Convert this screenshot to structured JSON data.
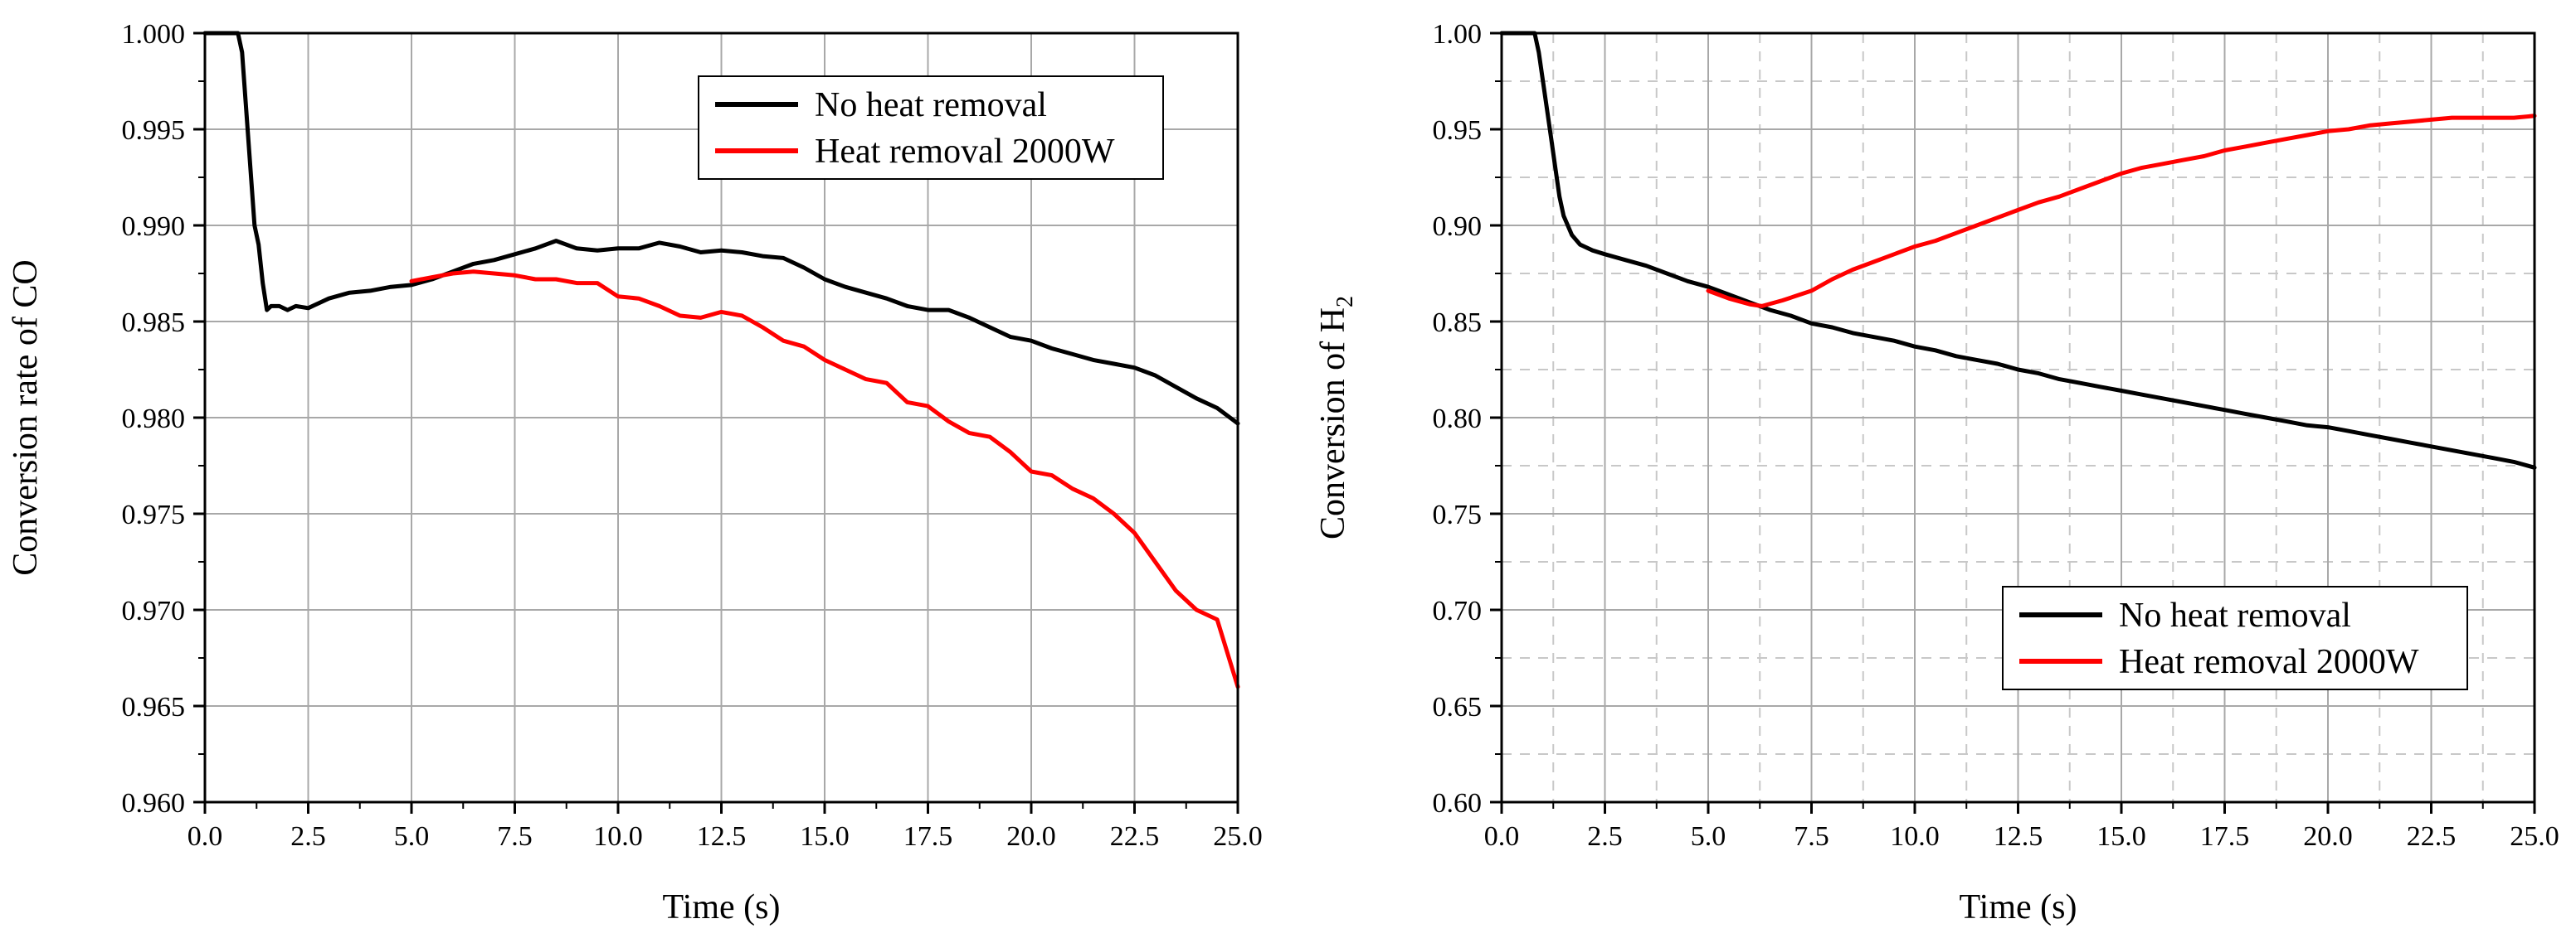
{
  "chart_data": [
    {
      "type": "line",
      "xlabel": "Time (s)",
      "ylabel": "Conversion rate of CO",
      "ylabel_sub": "",
      "xlim": [
        0,
        25
      ],
      "ylim": [
        0.96,
        1.0
      ],
      "xticks": [
        0,
        2.5,
        5,
        7.5,
        10,
        12.5,
        15,
        17.5,
        20,
        22.5,
        25
      ],
      "xtick_labels": [
        "0.0",
        "2.5",
        "5.0",
        "7.5",
        "10.0",
        "12.5",
        "15.0",
        "17.5",
        "20.0",
        "22.5",
        "25.0"
      ],
      "yticks": [
        0.96,
        0.965,
        0.97,
        0.975,
        0.98,
        0.985,
        0.99,
        0.995,
        1.0
      ],
      "ytick_labels": [
        "0.960",
        "0.965",
        "0.970",
        "0.975",
        "0.980",
        "0.985",
        "0.990",
        "0.995",
        "1.000"
      ],
      "grid": "solid",
      "legend_position": "top-right",
      "series": [
        {
          "name": "No heat removal",
          "color": "#000000",
          "x": [
            0,
            0.8,
            0.9,
            1.0,
            1.1,
            1.2,
            1.3,
            1.4,
            1.5,
            1.6,
            1.8,
            2.0,
            2.2,
            2.5,
            3.0,
            3.5,
            4.0,
            4.5,
            5.0,
            5.5,
            6.0,
            6.5,
            7.0,
            7.5,
            8.0,
            8.5,
            9.0,
            9.5,
            10.0,
            10.5,
            11.0,
            11.5,
            12.0,
            12.5,
            13.0,
            13.5,
            14.0,
            14.5,
            15.0,
            15.5,
            16.0,
            16.5,
            17.0,
            17.5,
            18.0,
            18.5,
            19.0,
            19.5,
            20.0,
            20.5,
            21.0,
            21.5,
            22.0,
            22.5,
            23.0,
            23.5,
            24.0,
            24.5,
            25.0
          ],
          "values": [
            1.0,
            1.0,
            0.999,
            0.996,
            0.993,
            0.99,
            0.989,
            0.987,
            0.9856,
            0.9858,
            0.9858,
            0.9856,
            0.9858,
            0.9857,
            0.9862,
            0.9865,
            0.9866,
            0.9868,
            0.9869,
            0.9872,
            0.9876,
            0.988,
            0.9882,
            0.9885,
            0.9888,
            0.9892,
            0.9888,
            0.9887,
            0.9888,
            0.9888,
            0.9891,
            0.9889,
            0.9886,
            0.9887,
            0.9886,
            0.9884,
            0.9883,
            0.9878,
            0.9872,
            0.9868,
            0.9865,
            0.9862,
            0.9858,
            0.9856,
            0.9856,
            0.9852,
            0.9847,
            0.9842,
            0.984,
            0.9836,
            0.9833,
            0.983,
            0.9828,
            0.9826,
            0.9822,
            0.9816,
            0.981,
            0.9805,
            0.9797
          ]
        },
        {
          "name": "Heat removal 2000W",
          "color": "#ff0000",
          "x": [
            5.0,
            5.5,
            6.0,
            6.5,
            7.0,
            7.5,
            8.0,
            8.5,
            9.0,
            9.5,
            10.0,
            10.5,
            11.0,
            11.5,
            12.0,
            12.5,
            13.0,
            13.5,
            14.0,
            14.5,
            15.0,
            15.5,
            16.0,
            16.5,
            17.0,
            17.5,
            18.0,
            18.5,
            19.0,
            19.5,
            20.0,
            20.5,
            21.0,
            21.5,
            22.0,
            22.5,
            23.0,
            23.5,
            24.0,
            24.5,
            25.0
          ],
          "values": [
            0.9871,
            0.9873,
            0.9875,
            0.9876,
            0.9875,
            0.9874,
            0.9872,
            0.9872,
            0.987,
            0.987,
            0.9863,
            0.9862,
            0.9858,
            0.9853,
            0.9852,
            0.9855,
            0.9853,
            0.9847,
            0.984,
            0.9837,
            0.983,
            0.9825,
            0.982,
            0.9818,
            0.9808,
            0.9806,
            0.9798,
            0.9792,
            0.979,
            0.9782,
            0.9772,
            0.977,
            0.9763,
            0.9758,
            0.975,
            0.974,
            0.9725,
            0.971,
            0.97,
            0.9695,
            0.966
          ]
        }
      ]
    },
    {
      "type": "line",
      "xlabel": "Time (s)",
      "ylabel": "Conversion of H",
      "ylabel_sub": "2",
      "xlim": [
        0,
        25
      ],
      "ylim": [
        0.6,
        1.0
      ],
      "xticks": [
        0,
        2.5,
        5,
        7.5,
        10,
        12.5,
        15,
        17.5,
        20,
        22.5,
        25
      ],
      "xtick_labels": [
        "0.0",
        "2.5",
        "5.0",
        "7.5",
        "10.0",
        "12.5",
        "15.0",
        "17.5",
        "20.0",
        "22.5",
        "25.0"
      ],
      "yticks": [
        0.6,
        0.65,
        0.7,
        0.75,
        0.8,
        0.85,
        0.9,
        0.95,
        1.0
      ],
      "ytick_labels": [
        "0.60",
        "0.65",
        "0.70",
        "0.75",
        "0.80",
        "0.85",
        "0.90",
        "0.95",
        "1.00"
      ],
      "grid": "solid-and-dashed-minor",
      "legend_position": "bottom-right",
      "series": [
        {
          "name": "No heat removal",
          "color": "#000000",
          "x": [
            0,
            0.8,
            0.9,
            1.0,
            1.1,
            1.2,
            1.3,
            1.4,
            1.5,
            1.7,
            1.9,
            2.2,
            2.5,
            3.0,
            3.5,
            4.0,
            4.5,
            5.0,
            5.5,
            6.0,
            6.5,
            7.0,
            7.5,
            8.0,
            8.5,
            9.0,
            9.5,
            10.0,
            10.5,
            11.0,
            11.5,
            12.0,
            12.5,
            13.0,
            13.5,
            14.0,
            14.5,
            15.0,
            15.5,
            16.0,
            16.5,
            17.0,
            17.5,
            18.0,
            18.5,
            19.0,
            19.5,
            20.0,
            20.5,
            21.0,
            21.5,
            22.0,
            22.5,
            23.0,
            23.5,
            24.0,
            24.5,
            25.0
          ],
          "values": [
            1.0,
            1.0,
            0.99,
            0.975,
            0.96,
            0.945,
            0.93,
            0.915,
            0.905,
            0.895,
            0.89,
            0.887,
            0.885,
            0.882,
            0.879,
            0.875,
            0.871,
            0.868,
            0.864,
            0.86,
            0.856,
            0.853,
            0.849,
            0.847,
            0.844,
            0.842,
            0.84,
            0.837,
            0.835,
            0.832,
            0.83,
            0.828,
            0.825,
            0.823,
            0.82,
            0.818,
            0.816,
            0.814,
            0.812,
            0.81,
            0.808,
            0.806,
            0.804,
            0.802,
            0.8,
            0.798,
            0.796,
            0.795,
            0.793,
            0.791,
            0.789,
            0.787,
            0.785,
            0.783,
            0.781,
            0.779,
            0.777,
            0.774
          ]
        },
        {
          "name": "Heat removal 2000W",
          "color": "#ff0000",
          "x": [
            5.0,
            5.5,
            6.0,
            6.3,
            6.8,
            7.5,
            8.0,
            8.5,
            9.0,
            9.5,
            10.0,
            10.5,
            11.0,
            11.5,
            12.0,
            12.5,
            13.0,
            13.5,
            14.0,
            14.5,
            15.0,
            15.5,
            16.0,
            16.5,
            17.0,
            17.5,
            18.0,
            18.5,
            19.0,
            19.5,
            20.0,
            20.5,
            21.0,
            21.5,
            22.0,
            22.5,
            23.0,
            23.5,
            24.0,
            24.5,
            25.0
          ],
          "values": [
            0.866,
            0.862,
            0.859,
            0.858,
            0.861,
            0.866,
            0.872,
            0.877,
            0.881,
            0.885,
            0.889,
            0.892,
            0.896,
            0.9,
            0.904,
            0.908,
            0.912,
            0.915,
            0.919,
            0.923,
            0.927,
            0.93,
            0.932,
            0.934,
            0.936,
            0.939,
            0.941,
            0.943,
            0.945,
            0.947,
            0.949,
            0.95,
            0.952,
            0.953,
            0.954,
            0.955,
            0.956,
            0.956,
            0.956,
            0.956,
            0.957
          ]
        }
      ]
    }
  ]
}
